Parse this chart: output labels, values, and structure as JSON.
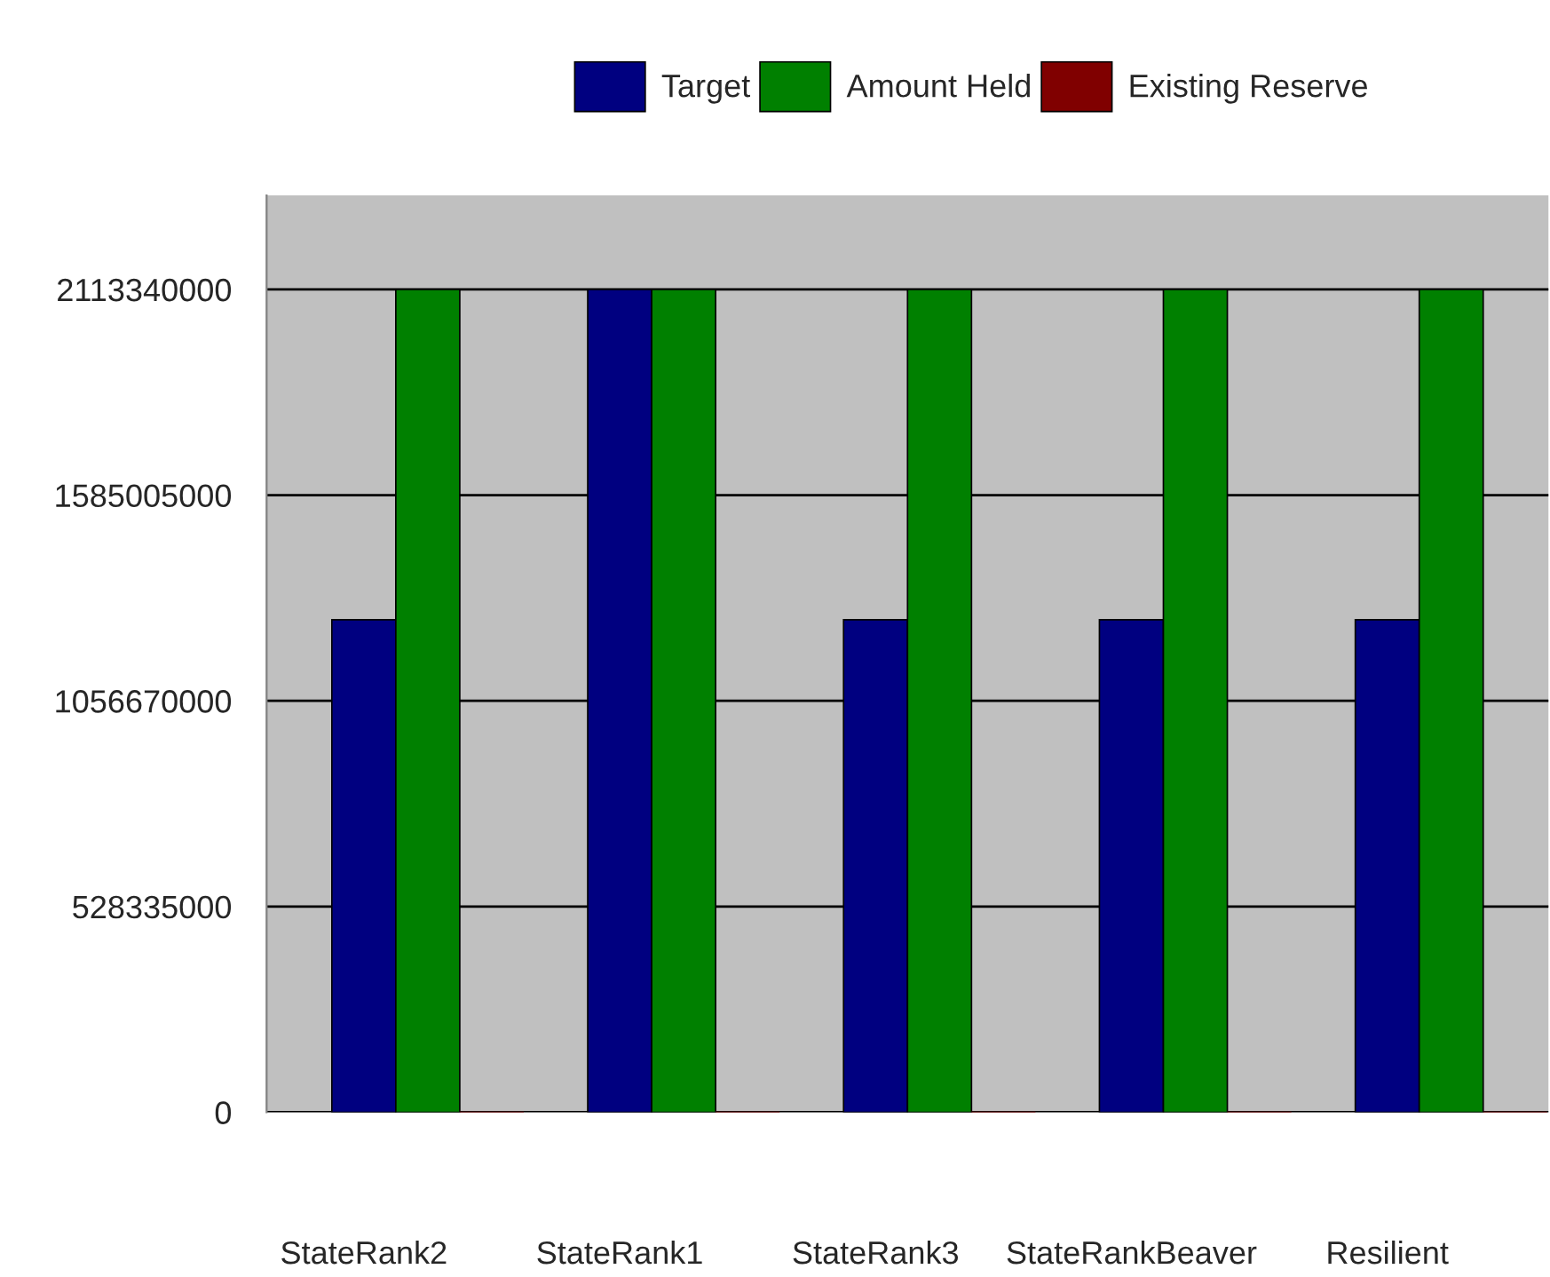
{
  "chart_data": {
    "type": "bar",
    "categories": [
      "StateRank2",
      "StateRank1",
      "StateRank3",
      "StateRankBeaver",
      "Resilient"
    ],
    "series": [
      {
        "name": "Target",
        "color": "#000080",
        "values": [
          1265000000,
          2113340000,
          1265000000,
          1265000000,
          1265000000
        ]
      },
      {
        "name": "Amount Held",
        "color": "#008000",
        "values": [
          2113340000,
          2113340000,
          2113340000,
          2113340000,
          2113340000
        ]
      },
      {
        "name": "Existing Reserve",
        "color": "#800000",
        "values": [
          0,
          0,
          0,
          0,
          0
        ]
      }
    ],
    "ylim": [
      0,
      2355000000
    ],
    "yticks": [
      0,
      528335000,
      1056670000,
      1585005000,
      2113340000
    ],
    "grid": "y",
    "legend": "top"
  }
}
